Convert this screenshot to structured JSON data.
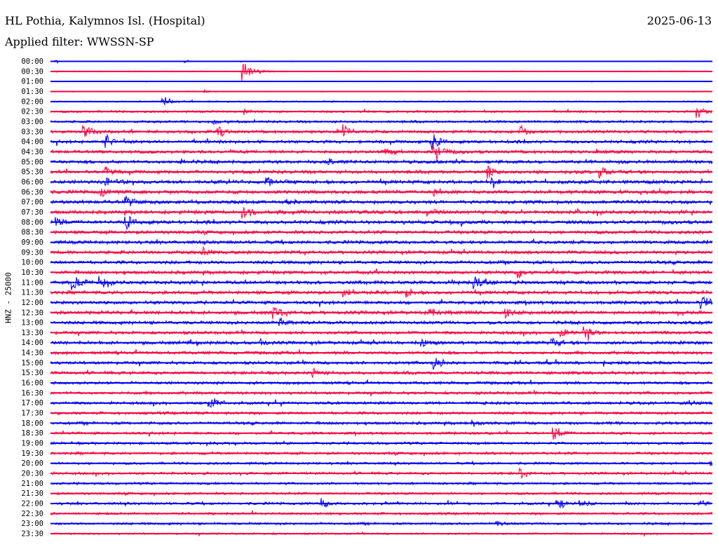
{
  "header": {
    "station": "HL Pothia, Kalymnos Isl. (Hospital)",
    "date": "2025-06-13",
    "filter": "Applied filter: WWSSN-SP"
  },
  "chart_data": {
    "type": "line",
    "title": "HL Pothia, Kalymnos Isl. (Hospital)",
    "ylabel": "HNZ - 25000",
    "xlabel": "",
    "minutes_per_row": 30,
    "colors": [
      "#0000ff",
      "#ff0040"
    ],
    "row_labels": [
      "00:00",
      "00:30",
      "01:00",
      "01:30",
      "02:00",
      "02:30",
      "03:00",
      "03:30",
      "04:00",
      "04:30",
      "05:00",
      "05:30",
      "06:00",
      "06:30",
      "07:00",
      "07:30",
      "08:00",
      "08:30",
      "09:00",
      "09:30",
      "10:00",
      "10:30",
      "11:00",
      "11:30",
      "12:00",
      "12:30",
      "13:00",
      "13:30",
      "14:00",
      "14:30",
      "15:00",
      "15:30",
      "16:00",
      "16:30",
      "17:00",
      "17:30",
      "18:00",
      "18:30",
      "19:00",
      "19:30",
      "20:00",
      "20:30",
      "21:00",
      "21:30",
      "22:00",
      "22:30",
      "23:00",
      "23:30"
    ],
    "noise_level": [
      0.6,
      0.8,
      0.5,
      0.7,
      1.2,
      1.8,
      2.0,
      2.4,
      2.6,
      2.6,
      2.8,
      2.8,
      3.0,
      3.0,
      3.0,
      3.0,
      3.0,
      2.8,
      2.8,
      2.8,
      2.8,
      2.8,
      3.0,
      2.8,
      2.8,
      3.0,
      2.8,
      2.6,
      2.8,
      2.6,
      2.6,
      2.6,
      2.4,
      2.4,
      2.4,
      2.4,
      2.4,
      2.2,
      2.2,
      2.2,
      2.0,
      2.2,
      2.0,
      2.0,
      2.2,
      2.0,
      2.0,
      1.6
    ],
    "events": [
      {
        "row": 0,
        "minute": 0.25,
        "amp": 4
      },
      {
        "row": 0,
        "minute": 6.1,
        "amp": 3
      },
      {
        "row": 1,
        "minute": 8.7,
        "amp": 22
      },
      {
        "row": 3,
        "minute": 7.0,
        "amp": 3
      },
      {
        "row": 4,
        "minute": 5.1,
        "amp": 12
      },
      {
        "row": 5,
        "minute": 8.8,
        "amp": 5
      },
      {
        "row": 5,
        "minute": 29.3,
        "amp": 12
      },
      {
        "row": 6,
        "minute": 7.4,
        "amp": 8
      },
      {
        "row": 7,
        "minute": 1.5,
        "amp": 14
      },
      {
        "row": 7,
        "minute": 7.6,
        "amp": 12
      },
      {
        "row": 7,
        "minute": 13.3,
        "amp": 10
      },
      {
        "row": 7,
        "minute": 21.2,
        "amp": 14
      },
      {
        "row": 8,
        "minute": 2.5,
        "amp": 16
      },
      {
        "row": 8,
        "minute": 17.3,
        "amp": 14
      },
      {
        "row": 9,
        "minute": 15.1,
        "amp": 12
      },
      {
        "row": 9,
        "minute": 17.4,
        "amp": 18
      },
      {
        "row": 10,
        "minute": 5.9,
        "amp": 8
      },
      {
        "row": 10,
        "minute": 12.6,
        "amp": 6
      },
      {
        "row": 11,
        "minute": 2.5,
        "amp": 10
      },
      {
        "row": 11,
        "minute": 19.8,
        "amp": 12
      },
      {
        "row": 11,
        "minute": 24.9,
        "amp": 10
      },
      {
        "row": 12,
        "minute": 2.5,
        "amp": 12
      },
      {
        "row": 12,
        "minute": 9.8,
        "amp": 10
      },
      {
        "row": 12,
        "minute": 20.0,
        "amp": 10
      },
      {
        "row": 13,
        "minute": 2.3,
        "amp": 10
      },
      {
        "row": 13,
        "minute": 17.4,
        "amp": 8
      },
      {
        "row": 14,
        "minute": 3.4,
        "amp": 12
      },
      {
        "row": 14,
        "minute": 10.7,
        "amp": 8
      },
      {
        "row": 15,
        "minute": 8.7,
        "amp": 14
      },
      {
        "row": 15,
        "minute": 17.1,
        "amp": 10
      },
      {
        "row": 16,
        "minute": 0.25,
        "amp": 10
      },
      {
        "row": 16,
        "minute": 3.4,
        "amp": 14
      },
      {
        "row": 19,
        "minute": 6.9,
        "amp": 10
      },
      {
        "row": 21,
        "minute": 21.2,
        "amp": 10
      },
      {
        "row": 22,
        "minute": 1.0,
        "amp": 16
      },
      {
        "row": 22,
        "minute": 2.2,
        "amp": 12
      },
      {
        "row": 22,
        "minute": 19.2,
        "amp": 14
      },
      {
        "row": 23,
        "minute": 13.3,
        "amp": 8
      },
      {
        "row": 23,
        "minute": 16.1,
        "amp": 10
      },
      {
        "row": 24,
        "minute": 29.5,
        "amp": 14
      },
      {
        "row": 25,
        "minute": 10.1,
        "amp": 12
      },
      {
        "row": 25,
        "minute": 17.2,
        "amp": 10
      },
      {
        "row": 25,
        "minute": 20.6,
        "amp": 12
      },
      {
        "row": 26,
        "minute": 10.4,
        "amp": 8
      },
      {
        "row": 27,
        "minute": 23.1,
        "amp": 10
      },
      {
        "row": 27,
        "minute": 24.2,
        "amp": 12
      },
      {
        "row": 28,
        "minute": 9.5,
        "amp": 8
      },
      {
        "row": 28,
        "minute": 16.8,
        "amp": 8
      },
      {
        "row": 28,
        "minute": 22.7,
        "amp": 10
      },
      {
        "row": 30,
        "minute": 17.4,
        "amp": 14
      },
      {
        "row": 31,
        "minute": 11.9,
        "amp": 10
      },
      {
        "row": 34,
        "minute": 7.2,
        "amp": 14
      },
      {
        "row": 34,
        "minute": 29.0,
        "amp": 6
      },
      {
        "row": 36,
        "minute": 19.1,
        "amp": 6
      },
      {
        "row": 37,
        "minute": 22.8,
        "amp": 14
      },
      {
        "row": 40,
        "minute": 29.9,
        "amp": 6
      },
      {
        "row": 41,
        "minute": 21.3,
        "amp": 8
      },
      {
        "row": 44,
        "minute": 12.3,
        "amp": 12
      },
      {
        "row": 44,
        "minute": 23.0,
        "amp": 12
      },
      {
        "row": 44,
        "minute": 24.0,
        "amp": 8
      },
      {
        "row": 44,
        "minute": 29.5,
        "amp": 6
      },
      {
        "row": 46,
        "minute": 20.2,
        "amp": 8
      }
    ]
  }
}
